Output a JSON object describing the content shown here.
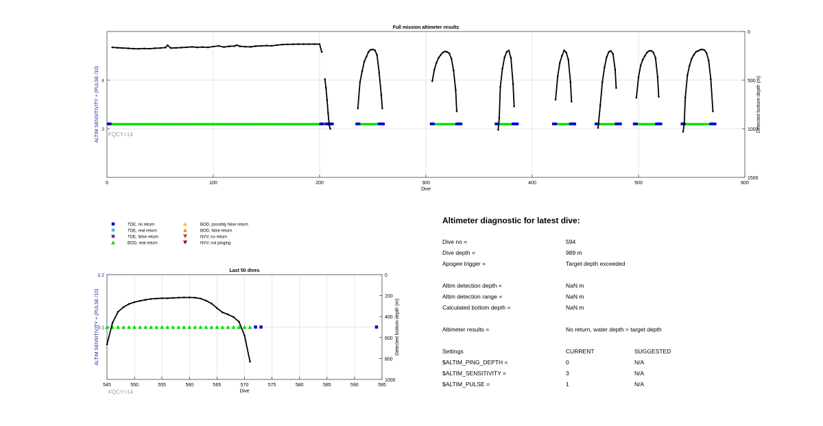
{
  "colors": {
    "tde_no_return": "#0000cc",
    "tde_real_return": "#33cccc",
    "tde_false_return": "#7a2fa0",
    "bod_real_return": "#00dd00",
    "bod_possibly_false": "#f0c020",
    "bod_false_return": "#e89020",
    "nvv_no_return": "#dd3300",
    "nvv_not_pinging": "#8b0000",
    "axis_left": "#2222aa",
    "grid": "#e6e6e6",
    "note": "#999999"
  },
  "chart_data": [
    {
      "type": "scatter",
      "title": "Full mission altimeter results",
      "xlabel": "Dive",
      "ylabel_left": "ALTIM SENSITIVITY + (PULSE /10)",
      "ylabel_right": "Detected bottom depth (m)",
      "xlim": [
        0,
        600
      ],
      "ylim_left": [
        2,
        5
      ],
      "ylim_right": [
        1500,
        0
      ],
      "x_ticks": [
        "0",
        "100",
        "200",
        "300",
        "400",
        "500",
        "600"
      ],
      "y_left_ticks": [
        "3",
        "4"
      ],
      "y_right_ticks": [
        "0",
        "500",
        "1000",
        "1500"
      ],
      "annotation": "FQCY=14",
      "grid": true,
      "bod_real_return_level": 3.1,
      "bod_real_return_dives": [
        [
          5,
          202
        ],
        [
          237,
          260
        ],
        [
          307,
          330
        ],
        [
          368,
          385
        ],
        [
          422,
          438
        ],
        [
          462,
          480
        ],
        [
          498,
          518
        ],
        [
          542,
          569
        ]
      ],
      "tde_no_return_level": 3.1,
      "tde_no_return_dives": [
        1,
        3,
        201,
        203,
        206,
        208,
        210,
        212,
        235,
        237,
        256,
        258,
        260,
        305,
        307,
        329,
        331,
        333,
        366,
        368,
        382,
        384,
        386,
        420,
        422,
        436,
        438,
        440,
        460,
        462,
        479,
        481,
        483,
        496,
        498,
        517,
        519,
        521,
        541,
        543,
        568,
        570,
        572
      ],
      "depth_series": [
        {
          "x": [
            5,
            10,
            15,
            20,
            25,
            30,
            35,
            40,
            45,
            50,
            55,
            57,
            60,
            65,
            70,
            75,
            80,
            85,
            90,
            95,
            100,
            105,
            110,
            115,
            120,
            122,
            125,
            130,
            135,
            140,
            145,
            150,
            155,
            160,
            165,
            170,
            175,
            180,
            185,
            190,
            195,
            200,
            202
          ],
          "y": [
            163,
            167,
            170,
            173,
            176,
            178,
            175,
            177,
            172,
            170,
            165,
            142,
            170,
            168,
            165,
            162,
            158,
            163,
            160,
            163,
            155,
            148,
            160,
            152,
            150,
            140,
            152,
            156,
            158,
            150,
            148,
            145,
            147,
            140,
            134,
            132,
            131,
            130,
            130,
            130,
            130,
            130,
            210
          ]
        },
        {
          "x": [
            205,
            206,
            207,
            208,
            209,
            210
          ],
          "y": [
            490,
            580,
            700,
            840,
            960,
            1000
          ]
        },
        {
          "x": [
            236,
            238,
            240,
            242,
            244,
            246,
            248,
            250,
            252,
            254,
            256,
            258,
            259
          ],
          "y": [
            790,
            520,
            410,
            310,
            260,
            210,
            188,
            185,
            192,
            240,
            420,
            650,
            790
          ]
        },
        {
          "x": [
            306,
            308,
            310,
            312,
            314,
            316,
            318,
            320,
            322,
            324,
            326,
            328,
            329
          ],
          "y": [
            510,
            390,
            320,
            270,
            240,
            215,
            205,
            210,
            225,
            280,
            400,
            600,
            820
          ]
        },
        {
          "x": [
            368,
            369,
            370,
            372,
            374,
            376,
            378,
            380,
            382,
            383
          ],
          "y": [
            1010,
            890,
            570,
            380,
            265,
            210,
            195,
            270,
            540,
            770
          ]
        },
        {
          "x": [
            422,
            424,
            426,
            428,
            430,
            432,
            434,
            436,
            437
          ],
          "y": [
            700,
            460,
            320,
            250,
            195,
            215,
            290,
            520,
            720
          ]
        },
        {
          "x": [
            462,
            464,
            466,
            468,
            470,
            472,
            474,
            476,
            478,
            479
          ],
          "y": [
            990,
            760,
            520,
            370,
            265,
            210,
            200,
            230,
            390,
            580
          ]
        },
        {
          "x": [
            498,
            500,
            502,
            504,
            506,
            508,
            510,
            512,
            514,
            516,
            518,
            519
          ],
          "y": [
            680,
            470,
            350,
            290,
            250,
            215,
            200,
            198,
            215,
            270,
            470,
            670
          ]
        },
        {
          "x": [
            542,
            543,
            544,
            546,
            548,
            550,
            552,
            554,
            556,
            558,
            560,
            562,
            564,
            566,
            568,
            570
          ],
          "y": [
            1030,
            950,
            680,
            450,
            350,
            280,
            240,
            210,
            200,
            188,
            184,
            192,
            220,
            300,
            490,
            820
          ]
        }
      ]
    },
    {
      "type": "scatter",
      "title": "Last 50 dives",
      "xlabel": "Dive",
      "ylabel_left": "ALTIM SENSITIVITY + (PULSE /10)",
      "ylabel_right": "Detected bottom depth (m)",
      "xlim": [
        545,
        595
      ],
      "ylim_left": [
        3,
        3.2
      ],
      "ylim_right": [
        1000,
        0
      ],
      "x_ticks": [
        "545",
        "550",
        "555",
        "560",
        "565",
        "570",
        "575",
        "580",
        "585",
        "590",
        "595"
      ],
      "y_left_ticks": [
        "3.1",
        "3.2"
      ],
      "y_right_ticks": [
        "0",
        "200",
        "400",
        "600",
        "800",
        "1000"
      ],
      "annotation": "FQCY=14",
      "grid": true,
      "bod_real_return": {
        "x": [
          545,
          546,
          547,
          548,
          549,
          550,
          551,
          552,
          553,
          554,
          555,
          556,
          557,
          558,
          559,
          560,
          561,
          562,
          563,
          564,
          565,
          566,
          567,
          568,
          569,
          570,
          571
        ],
        "y": 3.1
      },
      "tde_no_return": {
        "x": [
          572,
          573,
          594
        ],
        "y": 3.1
      },
      "depth_series": {
        "x": [
          545,
          546,
          547,
          548,
          549,
          550,
          551,
          552,
          553,
          554,
          555,
          556,
          557,
          558,
          559,
          560,
          561,
          562,
          563,
          564,
          565,
          566,
          567,
          568,
          569,
          570,
          571
        ],
        "y": [
          665,
          460,
          355,
          310,
          280,
          262,
          250,
          240,
          232,
          228,
          225,
          225,
          222,
          220,
          218,
          218,
          220,
          228,
          248,
          275,
          320,
          360,
          380,
          405,
          450,
          580,
          830
        ]
      }
    }
  ],
  "legend": [
    {
      "label": "TDE, no return",
      "marker": "square",
      "color": "#0000cc"
    },
    {
      "label": "BOD, possibly false return",
      "marker": "triangle-up",
      "color": "#f0c020"
    },
    {
      "label": "TDE, real return",
      "marker": "square",
      "color": "#33cccc"
    },
    {
      "label": "BOD, false return",
      "marker": "triangle-up",
      "color": "#e89020"
    },
    {
      "label": "TDE, false return",
      "marker": "square",
      "color": "#7a2fa0"
    },
    {
      "label": "NVV, no return",
      "marker": "triangle-down",
      "color": "#dd3300"
    },
    {
      "label": "BOD, real return",
      "marker": "triangle-up",
      "color": "#00dd00"
    },
    {
      "label": "NVV, not pinging",
      "marker": "triangle-down",
      "color": "#8b0000"
    }
  ],
  "diagnostic": {
    "title": "Altimeter diagnostic for latest dive:",
    "dive_no_label": "Dive no =",
    "dive_no_value": "594",
    "dive_depth_label": "Dive depth =",
    "dive_depth_value": "989 m",
    "apogee_label": "Apogee trigger =",
    "apogee_value": "Target depth exceeded",
    "det_depth_label": "Altim detection depth =",
    "det_depth_value": "NaN m",
    "det_range_label": "Altim detection range =",
    "det_range_value": "NaN m",
    "calc_bottom_label": "Calculated bottom depth =",
    "calc_bottom_value": "NaN m",
    "results_label": "Altimeter results =",
    "results_value": "No return, water depth > target depth",
    "settings_label": "Settings",
    "current_label": "CURRENT",
    "suggested_label": "SUGGESTED",
    "ping_depth_label": "$ALTIM_PING_DEPTH =",
    "ping_depth_current": "0",
    "ping_depth_suggested": "N/A",
    "sensitivity_label": "$ALTIM_SENSITIVITY =",
    "sensitivity_current": "3",
    "sensitivity_suggested": "N/A",
    "pulse_label": "$ALTIM_PULSE =",
    "pulse_current": "1",
    "pulse_suggested": "N/A"
  }
}
